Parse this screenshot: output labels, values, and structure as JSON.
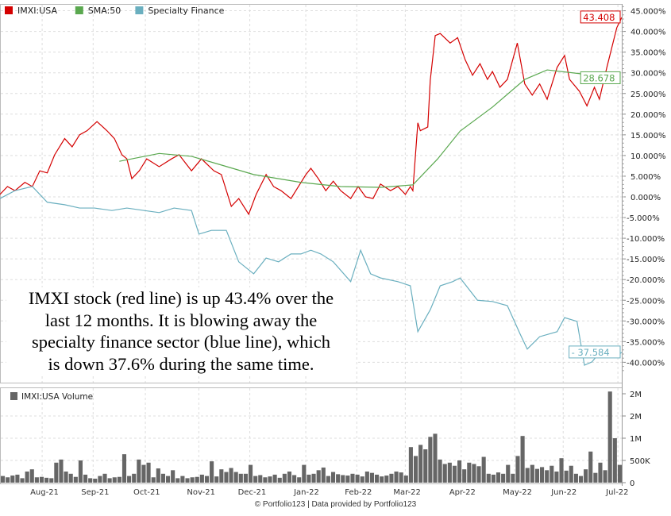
{
  "chart_data": [
    {
      "type": "line",
      "title": "",
      "x_unit": "trading days",
      "xlim": [
        0,
        250
      ],
      "ylim": [
        -42.5,
        47
      ],
      "yticks": [
        45,
        40,
        35,
        30,
        25,
        20,
        15,
        10,
        5,
        0,
        -5,
        -10,
        -15,
        -20,
        -25,
        -30,
        -35,
        -40
      ],
      "ytick_labels": [
        "45.000%",
        "40.000%",
        "35.000%",
        "30.000%",
        "25.000%",
        "20.000%",
        "15.000%",
        "10.000%",
        "5.000%",
        "0.000%",
        "-5.000%",
        "-10.000%",
        "-15.000%",
        "-20.000%",
        "-25.000%",
        "-30.000%",
        "-35.000%",
        "-40.000%"
      ],
      "month_ticks": [
        {
          "label": "Aug-21",
          "day": 19.5
        },
        {
          "label": "Sep-21",
          "day": 40
        },
        {
          "label": "Oct-21",
          "day": 61
        },
        {
          "label": "Nov-21",
          "day": 82.5
        },
        {
          "label": "Dec-21",
          "day": 103
        },
        {
          "label": "Jan-22",
          "day": 125.5
        },
        {
          "label": "Feb-22",
          "day": 146
        },
        {
          "label": "Mar-22",
          "day": 165.5
        },
        {
          "label": "Apr-22",
          "day": 188
        },
        {
          "label": "May-22",
          "day": 209.5
        },
        {
          "label": "Jun-22",
          "day": 229
        },
        {
          "label": "Jul-22",
          "day": 251
        }
      ],
      "legend_position": "top-left",
      "series": [
        {
          "name": "IMXI:USA",
          "color": "#d40000",
          "end_label": "43.408",
          "points": [
            [
              0,
              0.6
            ],
            [
              3,
              2.5
            ],
            [
              6,
              1.5
            ],
            [
              10,
              3.5
            ],
            [
              13,
              2.5
            ],
            [
              16,
              6.3
            ],
            [
              19,
              5.8
            ],
            [
              22,
              10.2
            ],
            [
              26,
              14.1
            ],
            [
              29,
              12.1
            ],
            [
              32,
              15
            ],
            [
              35,
              16
            ],
            [
              39,
              18.2
            ],
            [
              43,
              16
            ],
            [
              46,
              14.1
            ],
            [
              49,
              10.2
            ],
            [
              51,
              9.2
            ],
            [
              53,
              4.4
            ],
            [
              56,
              6.3
            ],
            [
              59,
              9.2
            ],
            [
              64,
              7.3
            ],
            [
              69,
              9.2
            ],
            [
              72,
              10.2
            ],
            [
              77,
              6.3
            ],
            [
              81,
              9.2
            ],
            [
              86,
              6.3
            ],
            [
              89,
              5.4
            ],
            [
              93,
              -2.3
            ],
            [
              96,
              -0.4
            ],
            [
              100,
              -4.2
            ],
            [
              103,
              0.6
            ],
            [
              107,
              5.4
            ],
            [
              110,
              2.5
            ],
            [
              113,
              1.5
            ],
            [
              117,
              -0.4
            ],
            [
              120,
              2.5
            ],
            [
              123,
              5.4
            ],
            [
              125,
              6.9
            ],
            [
              128,
              4.4
            ],
            [
              131,
              1.5
            ],
            [
              134,
              3.8
            ],
            [
              137,
              1.5
            ],
            [
              141,
              -0.4
            ],
            [
              144,
              2.5
            ],
            [
              147,
              0
            ],
            [
              150,
              -0.4
            ],
            [
              153,
              3.1
            ],
            [
              157,
              1.5
            ],
            [
              160,
              2.5
            ],
            [
              163,
              0.6
            ],
            [
              165,
              2.5
            ],
            [
              166,
              1.5
            ],
            [
              168,
              17.9
            ],
            [
              169,
              16
            ],
            [
              172,
              16.9
            ],
            [
              173,
              28.2
            ],
            [
              175,
              39
            ],
            [
              177,
              39.5
            ],
            [
              181,
              37.2
            ],
            [
              184,
              38.5
            ],
            [
              187,
              33.2
            ],
            [
              190,
              29.4
            ],
            [
              193,
              32.2
            ],
            [
              196,
              28.4
            ],
            [
              198,
              30.3
            ],
            [
              201,
              26.5
            ],
            [
              204,
              28.4
            ],
            [
              208,
              37.2
            ],
            [
              211,
              27.3
            ],
            [
              214,
              24.6
            ],
            [
              217,
              27.3
            ],
            [
              220,
              23.6
            ],
            [
              224,
              31.3
            ],
            [
              227,
              34.2
            ],
            [
              229,
              28.4
            ],
            [
              233,
              25.5
            ],
            [
              236,
              22
            ],
            [
              239,
              26.5
            ],
            [
              241,
              23.6
            ],
            [
              244,
              31.3
            ],
            [
              248,
              40.9
            ],
            [
              250,
              43.4
            ]
          ]
        },
        {
          "name": "SMA:50",
          "color": "#5aa84f",
          "end_label": "28.678",
          "points": [
            [
              48,
              8.6
            ],
            [
              64,
              10.5
            ],
            [
              77,
              9.8
            ],
            [
              89,
              7.7
            ],
            [
              102,
              5.4
            ],
            [
              121,
              3.5
            ],
            [
              137,
              2.5
            ],
            [
              153,
              2.3
            ],
            [
              166,
              2.9
            ],
            [
              176,
              9.2
            ],
            [
              185,
              15.9
            ],
            [
              198,
              21.7
            ],
            [
              211,
              28.4
            ],
            [
              220,
              30.7
            ],
            [
              233,
              29.8
            ],
            [
              243,
              28.7
            ]
          ]
        },
        {
          "name": "Specialty Finance",
          "color": "#6aafbf",
          "end_label": "- 37.584",
          "points": [
            [
              0,
              -0.4
            ],
            [
              6,
              1.5
            ],
            [
              13,
              2.5
            ],
            [
              19,
              -1.3
            ],
            [
              26,
              -1.9
            ],
            [
              32,
              -2.7
            ],
            [
              38,
              -2.7
            ],
            [
              45,
              -3.3
            ],
            [
              51,
              -2.7
            ],
            [
              58,
              -3.3
            ],
            [
              64,
              -3.8
            ],
            [
              70,
              -2.7
            ],
            [
              77,
              -3.3
            ],
            [
              80,
              -9
            ],
            [
              85,
              -8.1
            ],
            [
              91,
              -8.1
            ],
            [
              96,
              -15.7
            ],
            [
              102,
              -18.6
            ],
            [
              107,
              -14.8
            ],
            [
              112,
              -15.7
            ],
            [
              117,
              -13.8
            ],
            [
              121,
              -13.8
            ],
            [
              125,
              -12.9
            ],
            [
              129,
              -13.8
            ],
            [
              134,
              -15.7
            ],
            [
              141,
              -20.5
            ],
            [
              145,
              -12.9
            ],
            [
              149,
              -18.6
            ],
            [
              153,
              -19.6
            ],
            [
              160,
              -20.5
            ],
            [
              165,
              -21.5
            ],
            [
              168,
              -32.6
            ],
            [
              173,
              -27.3
            ],
            [
              177,
              -21.5
            ],
            [
              182,
              -20.5
            ],
            [
              185,
              -19.6
            ],
            [
              192,
              -25
            ],
            [
              198,
              -25.3
            ],
            [
              204,
              -26.3
            ],
            [
              209,
              -33
            ],
            [
              212,
              -36.8
            ],
            [
              217,
              -33.8
            ],
            [
              224,
              -32.6
            ],
            [
              227,
              -29.2
            ],
            [
              232,
              -30.1
            ],
            [
              235,
              -40.7
            ],
            [
              238,
              -39.9
            ],
            [
              243,
              -36.3
            ],
            [
              248,
              -38.4
            ],
            [
              250,
              -37.6
            ]
          ]
        }
      ]
    },
    {
      "type": "bar",
      "legend": "IMXI:USA Volume",
      "color": "#666666",
      "ylim": [
        0,
        2100
      ],
      "y_unit": "thousands",
      "yticks": [
        0,
        500,
        1000,
        1500,
        2000
      ],
      "ytick_labels": [
        "0",
        "500K",
        "1M",
        "2M",
        "2M"
      ],
      "values": [
        150,
        120,
        160,
        180,
        100,
        250,
        300,
        120,
        130,
        110,
        100,
        450,
        520,
        250,
        200,
        130,
        500,
        180,
        100,
        90,
        150,
        200,
        100,
        120,
        130,
        640,
        150,
        200,
        520,
        400,
        450,
        120,
        320,
        200,
        150,
        280,
        100,
        150,
        100,
        120,
        130,
        180,
        150,
        480,
        140,
        300,
        240,
        330,
        240,
        200,
        200,
        400,
        150,
        170,
        120,
        140,
        180,
        110,
        200,
        250,
        170,
        120,
        400,
        180,
        200,
        280,
        340,
        150,
        240,
        190,
        170,
        160,
        200,
        180,
        140,
        250,
        220,
        180,
        140,
        160,
        200,
        250,
        230,
        160,
        800,
        600,
        850,
        750,
        1030,
        1100,
        520,
        420,
        450,
        380,
        500,
        300,
        450,
        420,
        370,
        580,
        200,
        180,
        230,
        200,
        400,
        200,
        600,
        1050,
        330,
        400,
        310,
        350,
        280,
        380,
        250,
        550,
        270,
        380,
        200,
        150,
        300,
        700,
        220,
        450,
        280,
        2050,
        1000,
        400
      ]
    }
  ],
  "annotation": {
    "lines": [
      "IMXI stock (red line) is up 43.4% over the",
      "last 12 months. It is blowing away the",
      "specialty finance sector (blue line), which",
      "is down 37.6% during the same time."
    ]
  },
  "footer": "© Portfolio123 | Data provided by Portfolio123"
}
